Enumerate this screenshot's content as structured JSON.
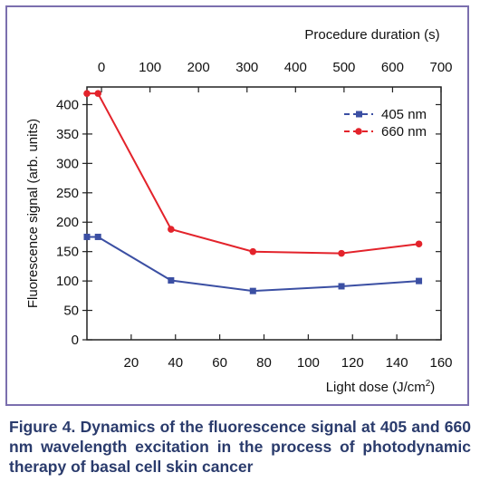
{
  "chart_data": {
    "type": "line",
    "title": "",
    "xlabel": "Light dose (J/cm",
    "xlabel_sup": "2",
    "xlabel_close": ")",
    "x2label": "Procedure duration (s)",
    "ylabel": "Fluorescence signal (arb. units)",
    "xlim": [
      0,
      160
    ],
    "x2lim": [
      -30,
      700
    ],
    "ylim": [
      0,
      430
    ],
    "xticks": [
      20,
      40,
      60,
      80,
      100,
      120,
      140,
      160
    ],
    "x2ticks": [
      0,
      100,
      200,
      300,
      400,
      500,
      600,
      700
    ],
    "yticks": [
      0,
      50,
      100,
      150,
      200,
      250,
      300,
      350,
      400
    ],
    "grid": false,
    "legend_position": "top-right",
    "series": [
      {
        "name": "405 nm",
        "color": "#3b4fa3",
        "marker": "square",
        "x": [
          0,
          5,
          38,
          75,
          115,
          150
        ],
        "y": [
          175,
          175,
          101,
          83,
          91,
          100
        ]
      },
      {
        "name": "660 nm",
        "color": "#e3232b",
        "marker": "circle",
        "x": [
          0,
          5,
          38,
          75,
          115,
          150
        ],
        "y": [
          419,
          419,
          188,
          150,
          147,
          163
        ]
      }
    ]
  },
  "caption": "Figure 4. Dynamics of the fluorescence signal at 405 and 660 nm wavelength excitation in the process of photodynamic therapy of basal cell skin cancer"
}
